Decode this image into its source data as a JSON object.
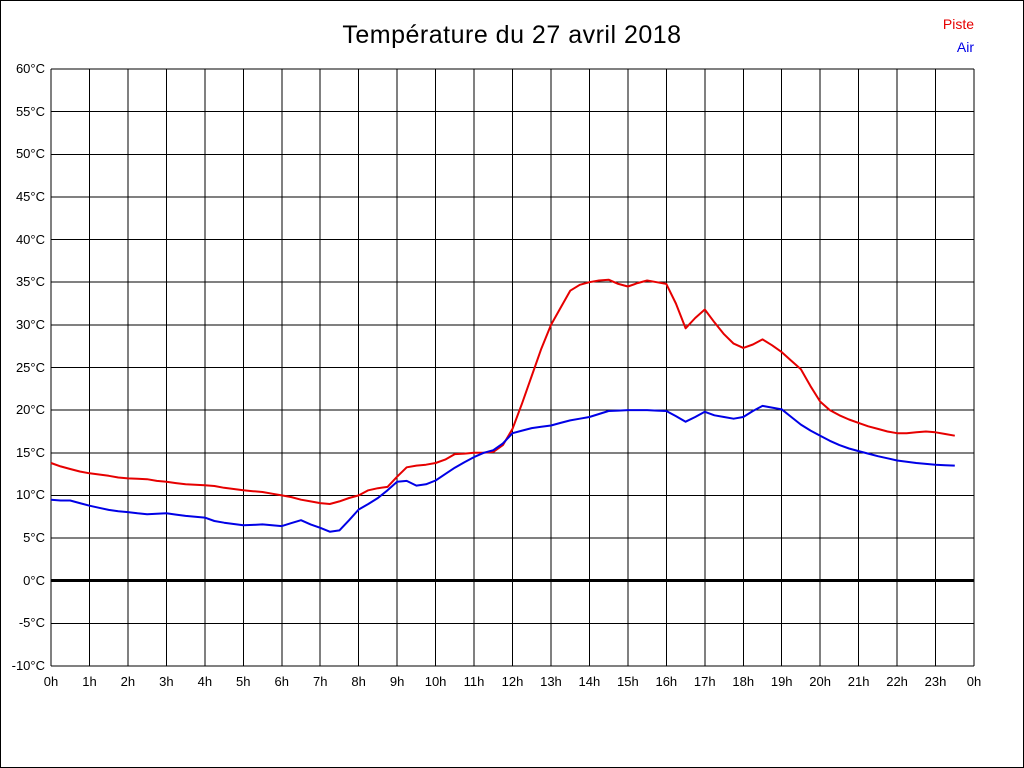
{
  "chart_data": {
    "type": "line",
    "title": "Température du 27 avril 2018",
    "xlabel": "",
    "ylabel": "",
    "x_axis_hours": {
      "start": 0,
      "end": 24,
      "tick_step": 1
    },
    "x_tick_labels": [
      "0h",
      "1h",
      "2h",
      "3h",
      "4h",
      "5h",
      "6h",
      "7h",
      "8h",
      "9h",
      "10h",
      "11h",
      "12h",
      "13h",
      "14h",
      "15h",
      "16h",
      "17h",
      "18h",
      "19h",
      "20h",
      "21h",
      "22h",
      "23h",
      "0h"
    ],
    "ylim": [
      -10,
      60
    ],
    "y_tick_step": 5,
    "y_tick_labels": [
      "60°C",
      "55°C",
      "50°C",
      "45°C",
      "40°C",
      "35°C",
      "30°C",
      "25°C",
      "20°C",
      "15°C",
      "10°C",
      "5°C",
      "0°C",
      "-5°C",
      "-10°C"
    ],
    "grid": true,
    "grid_color": "#000000",
    "bold_zero_line": true,
    "legend_position": "top-right",
    "sample_interval_hours": 0.25,
    "series": [
      {
        "name": "Piste",
        "color": "#e60000",
        "x_start_hour": 0,
        "x_step_hours": 0.25,
        "values": [
          13.8,
          13.4,
          13.1,
          12.8,
          12.6,
          12.45,
          12.3,
          12.1,
          12.0,
          11.95,
          11.9,
          11.7,
          11.6,
          11.45,
          11.3,
          11.25,
          11.2,
          11.1,
          10.9,
          10.75,
          10.6,
          10.5,
          10.4,
          10.2,
          10.0,
          9.8,
          9.5,
          9.3,
          9.1,
          9.0,
          9.3,
          9.7,
          10.0,
          10.6,
          10.85,
          11.0,
          12.2,
          13.3,
          13.5,
          13.6,
          13.8,
          14.2,
          14.85,
          14.9,
          15.0,
          15.0,
          15.1,
          15.9,
          17.8,
          20.8,
          24.0,
          27.2,
          30.0,
          32.0,
          34.0,
          34.7,
          35.0,
          35.2,
          35.3,
          34.8,
          34.5,
          34.9,
          35.2,
          35.0,
          34.8,
          32.5,
          29.6,
          30.8,
          31.8,
          30.3,
          28.9,
          27.8,
          27.3,
          27.7,
          28.3,
          27.6,
          26.8,
          25.8,
          24.8,
          22.8,
          21.0,
          20.0,
          19.4,
          18.9,
          18.5,
          18.1,
          17.8,
          17.5,
          17.3,
          17.3,
          17.4,
          17.5,
          17.4,
          17.2,
          17.0
        ]
      },
      {
        "name": "Air",
        "color": "#0000e6",
        "x_start_hour": 0,
        "x_step_hours": 0.25,
        "values": [
          9.5,
          9.4,
          9.4,
          9.1,
          8.8,
          8.55,
          8.3,
          8.15,
          8.05,
          7.9,
          7.8,
          7.85,
          7.9,
          7.75,
          7.6,
          7.5,
          7.4,
          7.0,
          6.8,
          6.65,
          6.5,
          6.55,
          6.6,
          6.5,
          6.4,
          6.75,
          7.1,
          6.6,
          6.2,
          5.75,
          5.9,
          7.1,
          8.35,
          9.0,
          9.7,
          10.6,
          11.6,
          11.7,
          11.15,
          11.3,
          11.75,
          12.5,
          13.25,
          13.9,
          14.5,
          15.0,
          15.3,
          16.1,
          17.3,
          17.6,
          17.9,
          18.05,
          18.2,
          18.5,
          18.8,
          19.0,
          19.2,
          19.55,
          19.9,
          19.95,
          20.0,
          20.0,
          20.0,
          19.95,
          19.9,
          19.3,
          18.65,
          19.2,
          19.8,
          19.4,
          19.2,
          19.0,
          19.2,
          19.9,
          20.5,
          20.3,
          20.1,
          19.2,
          18.3,
          17.6,
          17.0,
          16.4,
          15.9,
          15.5,
          15.2,
          14.9,
          14.6,
          14.35,
          14.1,
          13.95,
          13.8,
          13.7,
          13.6,
          13.55,
          13.5
        ]
      }
    ]
  }
}
